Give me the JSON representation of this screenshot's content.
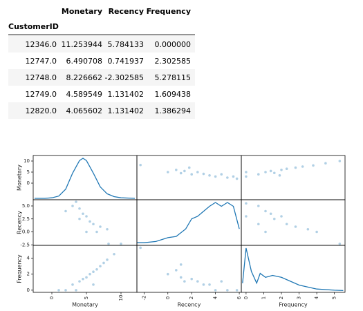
{
  "table": {
    "columns": [
      "Monetary",
      "Recency",
      "Frequency"
    ],
    "index_name": "CustomerID",
    "rows": [
      [
        "12346.0",
        "11.253944",
        "5.784133",
        "0.000000"
      ],
      [
        "12747.0",
        "6.490708",
        "0.741937",
        "2.302585"
      ],
      [
        "12748.0",
        "8.226662",
        "-2.302585",
        "5.278115"
      ],
      [
        "12749.0",
        "4.589549",
        "1.131402",
        "1.609438"
      ],
      [
        "12820.0",
        "4.065602",
        "1.131402",
        "1.386294"
      ]
    ]
  },
  "chart_data": {
    "type": "scatter_matrix",
    "color": "#1f77b4",
    "variables": [
      {
        "name": "Monetary",
        "xlim": [
          -2.7,
          12.3
        ],
        "xticks": [
          0,
          5,
          10
        ],
        "ylim": [
          -7.5,
          12.5
        ],
        "yticks": [
          0,
          5,
          10
        ],
        "density": {
          "x": [
            -2.5,
            -1,
            0,
            1,
            2,
            3,
            4,
            4.5,
            5,
            6,
            7,
            8,
            9,
            10,
            12
          ],
          "y": [
            0,
            0,
            0.005,
            0.02,
            0.08,
            0.22,
            0.33,
            0.35,
            0.33,
            0.22,
            0.1,
            0.04,
            0.015,
            0.005,
            0
          ]
        }
      },
      {
        "name": "Recency",
        "xlim": [
          -2.6,
          6.17
        ],
        "xticks": [
          -2,
          0,
          2,
          4,
          6
        ],
        "ylim": [
          -2.6,
          6.2
        ],
        "yticks": [
          {
            "value": -2.5,
            "label": "-2.5"
          },
          {
            "value": 0,
            "label": "0.0"
          },
          {
            "value": 2.5,
            "label": "2.5"
          },
          {
            "value": 5,
            "label": "5.0"
          }
        ],
        "density": {
          "x": [
            -2.6,
            -2,
            -1,
            0,
            0.7,
            1.5,
            2,
            2.5,
            3,
            3.5,
            4,
            4.5,
            5,
            5.5,
            6
          ],
          "y": [
            0.01,
            0.01,
            0.02,
            0.05,
            0.06,
            0.12,
            0.2,
            0.22,
            0.26,
            0.3,
            0.33,
            0.3,
            0.33,
            0.3,
            0.12
          ]
        }
      },
      {
        "name": "Frequency",
        "xlim": [
          -0.27,
          5.6
        ],
        "xticks": [
          0,
          1,
          2,
          3,
          4,
          5
        ],
        "ylim": [
          -0.27,
          5.6
        ],
        "yticks": [
          0,
          2,
          4
        ],
        "density": {
          "x": [
            -0.2,
            0,
            0.3,
            0.6,
            0.8,
            1.1,
            1.5,
            2,
            2.5,
            3,
            4,
            5,
            5.5
          ],
          "y": [
            0.2,
            1.1,
            0.5,
            0.2,
            0.45,
            0.35,
            0.4,
            0.35,
            0.25,
            0.15,
            0.05,
            0.02,
            0.01
          ]
        }
      }
    ],
    "panels": [
      [
        null,
        {
          "x": [
            0,
            0.7,
            1.1,
            1.4,
            2,
            2.5,
            3,
            3.5,
            4,
            4.5,
            5,
            5.5,
            5.8,
            -2.3,
            1.8
          ],
          "y": [
            5,
            6,
            4.5,
            5.5,
            4,
            5,
            4.2,
            3.5,
            3,
            4,
            2.5,
            3,
            2,
            8.2,
            7
          ]
        },
        {
          "x": [
            0,
            0,
            0.7,
            1.1,
            1.4,
            1.6,
            2,
            2.3,
            2.8,
            3.2,
            3.8,
            4.5,
            5.3,
            1.9
          ],
          "y": [
            3,
            5,
            4,
            5,
            5.5,
            4.6,
            6,
            6.5,
            7,
            7.5,
            8,
            9,
            10,
            3.5
          ]
        }
      ],
      [
        {
          "x": [
            2,
            3,
            4,
            4.5,
            5,
            5.5,
            6,
            7,
            8,
            3.5,
            4,
            5,
            6.5,
            8.2,
            10
          ],
          "y": [
            4,
            5,
            4.5,
            3.5,
            3,
            2,
            1.5,
            1,
            0.5,
            5.8,
            2.5,
            0,
            0,
            -2.3,
            -2.3
          ]
        },
        null,
        {
          "x": [
            0,
            0,
            0.7,
            1.1,
            1.4,
            1.6,
            2,
            2.3,
            2.8,
            3.5,
            4,
            5.3,
            1.1,
            0.7
          ],
          "y": [
            5.5,
            3,
            5,
            4,
            3.5,
            2.5,
            3,
            1.5,
            1,
            0.5,
            0,
            -2.3,
            0,
            1.5
          ]
        }
      ],
      [
        {
          "x": [
            1,
            2,
            3,
            4,
            4.5,
            5,
            5.5,
            6,
            6.5,
            7,
            7.5,
            8,
            9,
            3.5,
            6
          ],
          "y": [
            0,
            0,
            0.7,
            1.1,
            1.4,
            1.6,
            2,
            2.3,
            2.6,
            3,
            3.4,
            3.8,
            4.5,
            0,
            0.7
          ]
        },
        {
          "x": [
            -2.3,
            0,
            0.7,
            1.1,
            1.4,
            2,
            2.5,
            3,
            3.5,
            4,
            4.5,
            5,
            5.8,
            1.1
          ],
          "y": [
            5.3,
            2,
            2.5,
            1.6,
            1.1,
            1.4,
            1.1,
            0.7,
            0.7,
            0,
            1.1,
            0,
            0,
            3.2
          ]
        },
        null
      ]
    ]
  }
}
